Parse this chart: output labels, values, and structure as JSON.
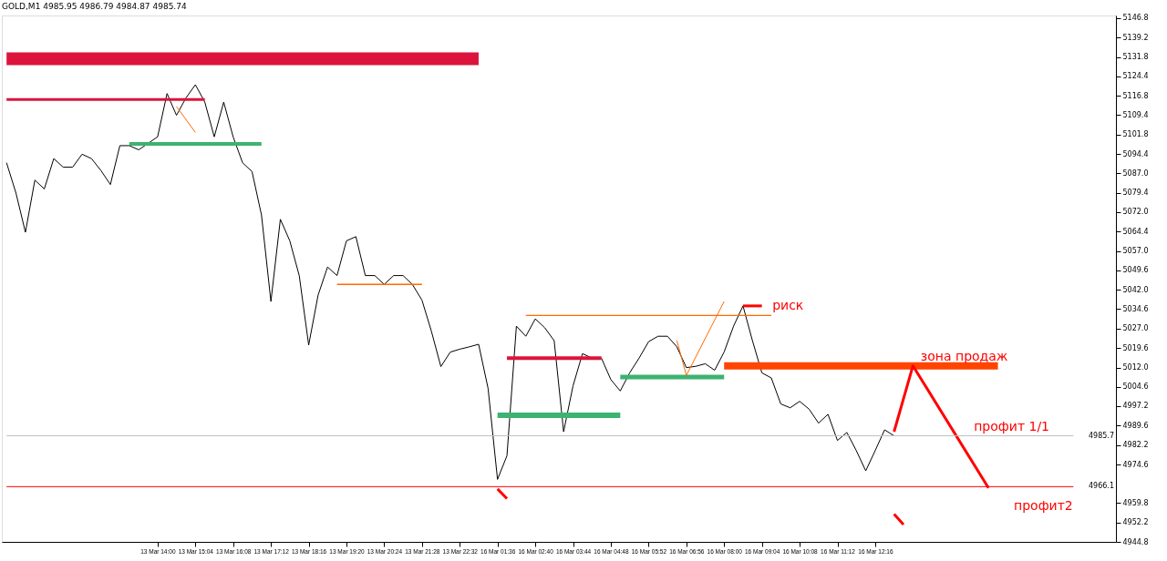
{
  "chart_data": {
    "type": "line",
    "title": "GOLD,M1  4985.95 4986.79 4984.87 4985.74",
    "categories": [
      null,
      null,
      null,
      null,
      null,
      null,
      null,
      null,
      null,
      null,
      null,
      null,
      null,
      null,
      null,
      null,
      "13 Mar 14:00",
      null,
      null,
      null,
      "13 Mar 15:04",
      null,
      null,
      null,
      "13 Mar 16:08",
      null,
      null,
      null,
      "13 Mar 17:12",
      null,
      null,
      null,
      "13 Mar 18:16",
      null,
      null,
      null,
      "13 Mar 19:20",
      null,
      null,
      null,
      "13 Mar 20:24",
      null,
      null,
      null,
      "13 Mar 21:28",
      null,
      null,
      null,
      "13 Mar 22:32",
      null,
      null,
      null,
      "16 Mar 01:36",
      null,
      null,
      null,
      "16 Mar 02:40",
      null,
      null,
      null,
      "16 Mar 03:44",
      null,
      null,
      null,
      "16 Mar 04:48",
      null,
      null,
      null,
      "16 Mar 05:52",
      null,
      null,
      null,
      "16 Mar 06:56",
      null,
      null,
      null,
      "16 Mar 08:00",
      null,
      null,
      null,
      "16 Mar 09:04",
      null,
      null,
      null,
      "16 Mar 10:08",
      null,
      null,
      null,
      "16 Mar 11:12",
      null,
      null,
      null,
      "16 Mar 12:16",
      null,
      null,
      null,
      null,
      null,
      null,
      null,
      null,
      null,
      null,
      null,
      null,
      null,
      null,
      null,
      null,
      null,
      null,
      null,
      null,
      null,
      null,
      null,
      null,
      null
    ],
    "ylim": [
      4944.8,
      5147.8
    ],
    "yticks": [
      {
        "value": 5146.8,
        "label": "5146.8"
      },
      {
        "value": 5139.2,
        "label": "5139.2"
      },
      {
        "value": 5131.8,
        "label": "5131.8"
      },
      {
        "value": 5124.4,
        "label": "5124.4"
      },
      {
        "value": 5116.8,
        "label": "5116.8"
      },
      {
        "value": 5109.4,
        "label": "5109.4"
      },
      {
        "value": 5101.8,
        "label": "5101.8"
      },
      {
        "value": 5094.4,
        "label": "5094.4"
      },
      {
        "value": 5087.0,
        "label": "5087.0"
      },
      {
        "value": 5079.4,
        "label": "5079.4"
      },
      {
        "value": 5072.0,
        "label": "5072.0"
      },
      {
        "value": 5064.4,
        "label": "5064.4"
      },
      {
        "value": 5057.0,
        "label": "5057.0"
      },
      {
        "value": 5049.6,
        "label": "5049.6"
      },
      {
        "value": 5042.0,
        "label": "5042.0"
      },
      {
        "value": 5034.6,
        "label": "5034.6"
      },
      {
        "value": 5027.0,
        "label": "5027.0"
      },
      {
        "value": 5019.6,
        "label": "5019.6"
      },
      {
        "value": 5012.0,
        "label": "5012.0"
      },
      {
        "value": 5004.6,
        "label": "5004.6"
      },
      {
        "value": 4997.2,
        "label": "4997.2"
      },
      {
        "value": 4989.6,
        "label": "4989.6"
      },
      {
        "value": 4982.2,
        "label": "4982.2"
      },
      {
        "value": 4974.6,
        "label": "4974.6"
      },
      {
        "value": 4959.8,
        "label": "4959.8"
      },
      {
        "value": 4952.2,
        "label": "4952.2"
      },
      {
        "value": 4944.8,
        "label": "4944.8"
      }
    ],
    "grid": false,
    "marker": "none",
    "series": [
      {
        "color": "#000000",
        "values": [
          5091.0,
          5079.3,
          5064.2,
          5084.3,
          5080.9,
          5092.6,
          5089.3,
          5089.3,
          5094.3,
          5092.6,
          5088.0,
          5082.6,
          5097.6,
          5097.6,
          5096.0,
          5098.5,
          5101.0,
          5117.7,
          5109.3,
          5116.0,
          5121.1,
          5114.4,
          5101.0,
          5114.4,
          5101.0,
          5091.0,
          5087.6,
          5070.9,
          5037.5,
          5069.2,
          5060.9,
          5047.5,
          5020.7,
          5040.0,
          5050.8,
          5047.5,
          5060.9,
          5062.5,
          5047.5,
          5047.5,
          5044.1,
          5047.5,
          5047.5,
          5044.0,
          5038.0,
          5026.0,
          5012.4,
          5018.0,
          5019.1,
          5020.0,
          5021.0,
          5004.0,
          4968.9,
          4978.0,
          5028.0,
          5024.1,
          5030.8,
          5027.4,
          5022.4,
          4987.3,
          5005.0,
          5017.4,
          5015.7,
          5015.7,
          5007.4,
          5003.0,
          5010.0,
          5015.7,
          5022.0,
          5024.1,
          5024.1,
          5020.0,
          5012.0,
          5012.5,
          5013.5,
          5011.0,
          5018.0,
          5028.0,
          5035.8,
          5022.4,
          5010.0,
          5008.0,
          4998.0,
          4996.5,
          4999.0,
          4996.0,
          4990.6,
          4994.0,
          4983.9,
          4987.0,
          4980.0,
          4972.2,
          4980.0,
          4988.0,
          4985.7,
          null,
          null,
          null,
          null,
          null,
          null,
          null,
          null,
          null,
          null,
          null,
          null,
          null,
          null,
          null,
          null,
          null,
          null,
          null,
          null,
          null,
          null,
          null
        ]
      },
      {
        "color": "#dc143c",
        "values": [
          5131.1,
          5131.1,
          5131.1,
          5131.1,
          5131.1,
          5131.1,
          5131.1,
          5131.1,
          5131.1,
          5131.1,
          5131.1,
          5131.1,
          5131.1,
          5131.1,
          5131.1,
          5131.1,
          5131.1,
          5131.1,
          5131.1,
          5131.1,
          5131.1,
          5131.1,
          5131.1,
          5131.1,
          5131.1,
          5131.1,
          5131.1,
          5131.1,
          5131.1,
          5131.1,
          5131.1,
          5131.1,
          5131.1,
          5131.1,
          5131.1,
          5131.1,
          5131.1,
          5131.1,
          5131.1,
          5131.1,
          5131.1,
          5131.1,
          5131.1,
          5131.1,
          5131.1,
          5131.1,
          5131.1,
          5131.1,
          5131.1,
          5131.1,
          5131.1,
          null,
          null,
          null,
          null,
          null,
          null,
          null,
          null,
          null,
          null,
          null,
          null,
          null,
          null,
          null,
          null,
          null,
          null,
          null,
          null,
          null,
          null,
          null,
          null,
          null,
          null,
          null,
          null,
          null,
          null,
          null,
          null,
          null,
          null,
          null,
          null,
          null,
          null,
          null,
          null,
          null,
          null,
          null,
          null,
          null,
          null,
          null,
          null,
          null,
          null,
          null,
          null,
          null,
          null,
          null,
          null,
          null,
          null,
          null,
          null,
          null,
          null,
          null,
          null,
          null,
          null,
          null
        ]
      },
      {
        "color": "#dc143c",
        "values": [
          5115.4,
          5115.4,
          5115.4,
          5115.4,
          5115.4,
          5115.4,
          5115.4,
          5115.4,
          5115.4,
          5115.4,
          5115.4,
          5115.4,
          5115.4,
          5115.4,
          5115.4,
          5115.4,
          5115.4,
          5115.4,
          5115.4,
          5115.4,
          5115.4,
          5115.4,
          null,
          null,
          null,
          null,
          null,
          null,
          null,
          null,
          null,
          null,
          null,
          null,
          null,
          null,
          null,
          null,
          null,
          null,
          null,
          null,
          null,
          null,
          null,
          null,
          null,
          null,
          null,
          null,
          null,
          null,
          null,
          null,
          null,
          null,
          null,
          null,
          null,
          null,
          null,
          null,
          null,
          null,
          null,
          null,
          null,
          null,
          null,
          null,
          null,
          null,
          null,
          null,
          null,
          null,
          null,
          null,
          null,
          null,
          null,
          null,
          null,
          null,
          null,
          null,
          null,
          null,
          null,
          null,
          null,
          null,
          null,
          null,
          null,
          null,
          null,
          null,
          null,
          null,
          null,
          null,
          null,
          null,
          null,
          null,
          null,
          null,
          null,
          null,
          null,
          null,
          null,
          null,
          null,
          null,
          null,
          null
        ]
      },
      {
        "color": "#3cb371",
        "values": [
          null,
          null,
          null,
          null,
          null,
          null,
          null,
          null,
          null,
          null,
          null,
          null,
          null,
          5098.3,
          5098.3,
          5098.3,
          5098.3,
          5098.3,
          5098.3,
          5098.3,
          5098.3,
          5098.3,
          5098.3,
          5098.3,
          5098.3,
          5098.3,
          5098.3,
          5098.3,
          null,
          null,
          null,
          null,
          null,
          null,
          null,
          null,
          null,
          null,
          null,
          null,
          null,
          null,
          null,
          null,
          null,
          null,
          null,
          null,
          null,
          null,
          null,
          null,
          null,
          null,
          null,
          null,
          null,
          null,
          null,
          null,
          null,
          null,
          null,
          null,
          null,
          null,
          null,
          null,
          null,
          null,
          null,
          null,
          null,
          null,
          null,
          null,
          null,
          null,
          null,
          null,
          null,
          null,
          null,
          null,
          null,
          null,
          null,
          null,
          null,
          null,
          null,
          null,
          null,
          null,
          null,
          null,
          null,
          null,
          null,
          null,
          null,
          null,
          null,
          null,
          null,
          null,
          null,
          null,
          null,
          null,
          null,
          null,
          null,
          null,
          null,
          null,
          null,
          null
        ]
      },
      {
        "color": "#ff6a00",
        "values": [
          null,
          null,
          null,
          null,
          null,
          null,
          null,
          null,
          null,
          null,
          null,
          null,
          null,
          null,
          null,
          null,
          null,
          null,
          null,
          null,
          null,
          null,
          null,
          null,
          null,
          null,
          null,
          null,
          null,
          null,
          null,
          null,
          null,
          null,
          null,
          5044.1,
          5044.1,
          5044.1,
          5044.1,
          5044.1,
          5044.1,
          5044.1,
          5044.1,
          5044.1,
          5044.1,
          null,
          null,
          null,
          null,
          null,
          null,
          null,
          null,
          null,
          null,
          null,
          null,
          null,
          null,
          null,
          null,
          null,
          null,
          null,
          null,
          null,
          null,
          null,
          null,
          null,
          null,
          null,
          null,
          null,
          null,
          null,
          null,
          null,
          null,
          null,
          null,
          null,
          null,
          null,
          null,
          null,
          null,
          null,
          null,
          null,
          null,
          null,
          null,
          null,
          null,
          null,
          null,
          null,
          null,
          null,
          null,
          null,
          null,
          null,
          null,
          null,
          null,
          null,
          null,
          null,
          null,
          null,
          null,
          null,
          null,
          null,
          null,
          null
        ]
      },
      {
        "color": "#ff6a00",
        "values": [
          null,
          null,
          null,
          null,
          null,
          null,
          null,
          null,
          null,
          null,
          null,
          null,
          null,
          null,
          null,
          null,
          null,
          null,
          null,
          null,
          null,
          null,
          null,
          null,
          null,
          null,
          null,
          null,
          null,
          null,
          null,
          null,
          null,
          null,
          null,
          null,
          null,
          null,
          null,
          null,
          null,
          null,
          null,
          null,
          null,
          null,
          null,
          null,
          null,
          null,
          null,
          null,
          null,
          null,
          null,
          5032.1,
          5032.1,
          5032.1,
          5032.1,
          5032.1,
          5032.1,
          5032.1,
          5032.1,
          5032.1,
          5032.1,
          5032.1,
          5032.1,
          5032.1,
          5032.1,
          5032.1,
          5032.1,
          5032.1,
          5032.1,
          5032.1,
          5032.1,
          5032.1,
          5032.1,
          5032.1,
          5032.1,
          5032.1,
          5032.1,
          5032.1,
          null,
          null,
          null,
          null,
          null,
          null,
          null,
          null,
          null,
          null,
          null,
          null,
          null,
          null,
          null,
          null,
          null,
          null,
          null,
          null,
          null,
          null,
          null,
          null,
          null,
          null,
          null,
          null,
          null,
          null,
          null,
          null,
          null,
          null,
          null,
          null
        ]
      },
      {
        "color": "#dc143c",
        "values": [
          null,
          null,
          null,
          null,
          null,
          null,
          null,
          null,
          null,
          null,
          null,
          null,
          null,
          null,
          null,
          null,
          null,
          null,
          null,
          null,
          null,
          null,
          null,
          null,
          null,
          null,
          null,
          null,
          null,
          null,
          null,
          null,
          null,
          null,
          null,
          null,
          null,
          null,
          null,
          null,
          null,
          null,
          null,
          null,
          null,
          null,
          null,
          null,
          null,
          null,
          null,
          null,
          null,
          5015.7,
          5015.7,
          5015.7,
          5015.7,
          5015.7,
          5015.7,
          5015.7,
          5015.7,
          5015.7,
          5015.7,
          5015.7,
          null,
          null,
          null,
          null,
          null,
          null,
          null,
          null,
          null,
          null,
          null,
          null,
          null,
          null,
          null,
          null,
          null,
          null,
          null,
          null,
          null,
          null,
          null,
          null,
          null,
          null,
          null,
          null,
          null,
          null,
          null,
          null,
          null,
          null,
          null,
          null,
          null,
          null,
          null,
          null,
          null,
          null,
          null,
          null,
          null,
          null,
          null,
          null,
          null,
          null,
          null,
          null,
          null,
          null
        ]
      },
      {
        "color": "#3cb371",
        "values": [
          null,
          null,
          null,
          null,
          null,
          null,
          null,
          null,
          null,
          null,
          null,
          null,
          null,
          null,
          null,
          null,
          null,
          null,
          null,
          null,
          null,
          null,
          null,
          null,
          null,
          null,
          null,
          null,
          null,
          null,
          null,
          null,
          null,
          null,
          null,
          null,
          null,
          null,
          null,
          null,
          null,
          null,
          null,
          null,
          null,
          null,
          null,
          null,
          null,
          null,
          null,
          null,
          null,
          null,
          null,
          null,
          null,
          null,
          null,
          null,
          null,
          null,
          null,
          null,
          null,
          5008.4,
          5008.4,
          5008.4,
          5008.4,
          5008.4,
          5008.4,
          5008.4,
          5008.4,
          5008.4,
          5008.4,
          5008.4,
          5008.4,
          null,
          null,
          null,
          null,
          null,
          null,
          null,
          null,
          null,
          null,
          null,
          null,
          null,
          null,
          null,
          null,
          null,
          null,
          null,
          null,
          null,
          null,
          null,
          null,
          null,
          null,
          null,
          null,
          null,
          null,
          null,
          null,
          null,
          null,
          null,
          null,
          null,
          null,
          null,
          null,
          null
        ]
      },
      {
        "color": "#3cb371",
        "values": [
          null,
          null,
          null,
          null,
          null,
          null,
          null,
          null,
          null,
          null,
          null,
          null,
          null,
          null,
          null,
          null,
          null,
          null,
          null,
          null,
          null,
          null,
          null,
          null,
          null,
          null,
          null,
          null,
          null,
          null,
          null,
          null,
          null,
          null,
          null,
          null,
          null,
          null,
          null,
          null,
          null,
          null,
          null,
          null,
          null,
          null,
          null,
          null,
          null,
          null,
          null,
          null,
          4993.6,
          4993.6,
          4993.6,
          4993.6,
          4993.6,
          4993.6,
          4993.6,
          4993.6,
          4993.6,
          4993.6,
          4993.6,
          4993.6,
          4993.6,
          4993.6,
          null,
          null,
          null,
          null,
          null,
          null,
          null,
          null,
          null,
          null,
          null,
          null,
          null,
          null,
          null,
          null,
          null,
          null,
          null,
          null,
          null,
          null,
          null,
          null,
          null,
          null,
          null,
          null,
          null,
          null,
          null,
          null,
          null,
          null,
          null,
          null,
          null,
          null,
          null,
          null,
          null,
          null,
          null,
          null,
          null,
          null,
          null,
          null,
          null,
          null,
          null,
          null
        ]
      },
      {
        "color": "#ff4500",
        "values": [
          null,
          null,
          null,
          null,
          null,
          null,
          null,
          null,
          null,
          null,
          null,
          null,
          null,
          null,
          null,
          null,
          null,
          null,
          null,
          null,
          null,
          null,
          null,
          null,
          null,
          null,
          null,
          null,
          null,
          null,
          null,
          null,
          null,
          null,
          null,
          null,
          null,
          null,
          null,
          null,
          null,
          null,
          null,
          null,
          null,
          null,
          null,
          null,
          null,
          null,
          null,
          null,
          null,
          null,
          null,
          null,
          null,
          null,
          null,
          null,
          null,
          null,
          null,
          null,
          null,
          null,
          null,
          null,
          null,
          null,
          null,
          null,
          null,
          null,
          null,
          null,
          5012.7,
          5012.7,
          5012.7,
          5012.7,
          5012.7,
          5012.7,
          5012.7,
          5012.7,
          5012.7,
          5012.7,
          5012.7,
          5012.7,
          5012.7,
          5012.7,
          5012.7,
          5012.7,
          5012.7,
          5012.7,
          5012.7,
          5012.7,
          5012.7,
          5012.7,
          5012.7,
          5012.7,
          5012.7,
          5012.7,
          5012.7,
          5012.7,
          5012.7,
          5012.7,
          null,
          null,
          null,
          null,
          null,
          null,
          null,
          null,
          null,
          null,
          null,
          null
        ]
      },
      {
        "color": "#ff6a00",
        "values": [
          null,
          null,
          null,
          null,
          null,
          null,
          null,
          null,
          null,
          null,
          null,
          null,
          null,
          null,
          null,
          null,
          null,
          null,
          5112.7,
          null,
          5102.7,
          null,
          null,
          null,
          null,
          null,
          null,
          null,
          null,
          null,
          null,
          null,
          null,
          null,
          null,
          null,
          null,
          null,
          null,
          null,
          null,
          null,
          null,
          null,
          null,
          null,
          null,
          null,
          null,
          null,
          null,
          null,
          null,
          null,
          null,
          null,
          null,
          null,
          null,
          null,
          null,
          null,
          null,
          null,
          null,
          null,
          null,
          null,
          null,
          null,
          null,
          null,
          null,
          null,
          null,
          null,
          null,
          null,
          null,
          null,
          null,
          null,
          null,
          null,
          null,
          null,
          null,
          null,
          null,
          null,
          null,
          null,
          null,
          null,
          null,
          null,
          null,
          null,
          null,
          null,
          null,
          null,
          null,
          null,
          null,
          null,
          null,
          null,
          null,
          null,
          null,
          null,
          null,
          null,
          null,
          null,
          null,
          null
        ]
      },
      {
        "color": "#ff6a00",
        "values": [
          null,
          null,
          null,
          null,
          null,
          null,
          null,
          null,
          null,
          null,
          null,
          null,
          null,
          null,
          null,
          null,
          null,
          null,
          null,
          null,
          null,
          null,
          null,
          null,
          null,
          null,
          null,
          null,
          null,
          null,
          null,
          null,
          null,
          null,
          null,
          null,
          null,
          null,
          null,
          null,
          null,
          null,
          null,
          null,
          null,
          null,
          null,
          null,
          null,
          null,
          null,
          null,
          null,
          null,
          null,
          null,
          null,
          null,
          null,
          null,
          null,
          null,
          null,
          null,
          null,
          null,
          null,
          null,
          null,
          null,
          null,
          5022.4,
          5009.0,
          null,
          null,
          null,
          5037.5,
          null,
          null,
          null,
          null,
          null,
          null,
          null,
          null,
          null,
          null,
          null,
          null,
          null,
          null,
          null,
          null,
          null,
          null,
          null,
          null,
          null,
          null,
          null,
          null,
          null,
          null,
          null,
          null,
          null,
          null,
          null,
          null,
          null,
          null,
          null,
          null,
          null,
          null,
          null,
          null,
          null
        ]
      },
      {
        "color": "#ff0000",
        "values": [
          null,
          null,
          null,
          null,
          null,
          null,
          null,
          null,
          null,
          null,
          null,
          null,
          null,
          null,
          null,
          null,
          null,
          null,
          null,
          null,
          null,
          null,
          null,
          null,
          null,
          null,
          null,
          null,
          null,
          null,
          null,
          null,
          null,
          null,
          null,
          null,
          null,
          null,
          null,
          null,
          null,
          null,
          null,
          null,
          null,
          null,
          null,
          null,
          null,
          null,
          null,
          null,
          null,
          null,
          null,
          null,
          null,
          null,
          null,
          null,
          null,
          null,
          null,
          null,
          null,
          null,
          null,
          null,
          null,
          null,
          null,
          null,
          null,
          null,
          null,
          null,
          null,
          null,
          null,
          null,
          null,
          null,
          null,
          null,
          null,
          null,
          null,
          null,
          null,
          null,
          null,
          null,
          null,
          null,
          4987.3,
          null,
          5012.7,
          null,
          null,
          null,
          null,
          null,
          null,
          null,
          4965.6,
          null,
          null,
          null,
          null,
          null,
          null,
          null,
          null,
          null,
          null,
          null,
          null,
          null
        ]
      },
      {
        "color": "#ff0000",
        "values": [
          null,
          null,
          null,
          null,
          null,
          null,
          null,
          null,
          null,
          null,
          null,
          null,
          null,
          null,
          null,
          null,
          null,
          null,
          null,
          null,
          null,
          null,
          null,
          null,
          null,
          null,
          null,
          null,
          null,
          null,
          null,
          null,
          null,
          null,
          null,
          null,
          null,
          null,
          null,
          null,
          null,
          null,
          null,
          null,
          null,
          null,
          null,
          null,
          null,
          null,
          null,
          null,
          null,
          null,
          null,
          null,
          null,
          null,
          null,
          null,
          null,
          null,
          null,
          null,
          null,
          null,
          null,
          null,
          null,
          null,
          null,
          null,
          null,
          null,
          null,
          null,
          null,
          null,
          5035.8,
          5035.8,
          5035.8,
          null,
          null,
          null,
          null,
          null,
          null,
          null,
          null,
          null,
          null,
          null,
          null,
          null,
          null,
          null,
          null,
          null,
          null,
          null,
          null,
          null,
          null,
          null,
          null,
          null,
          null,
          null,
          null,
          null,
          null,
          null,
          null,
          null,
          null,
          null,
          null,
          null
        ]
      },
      {
        "color": "#ff0000",
        "values": [
          null,
          null,
          null,
          null,
          null,
          null,
          null,
          null,
          null,
          null,
          null,
          null,
          null,
          null,
          null,
          null,
          null,
          null,
          null,
          null,
          null,
          null,
          null,
          null,
          null,
          null,
          null,
          null,
          null,
          null,
          null,
          null,
          null,
          null,
          null,
          null,
          null,
          null,
          null,
          null,
          null,
          null,
          null,
          null,
          null,
          null,
          null,
          null,
          null,
          null,
          null,
          null,
          4965.2,
          4961.5,
          null,
          null,
          null,
          null,
          null,
          null,
          null,
          null,
          null,
          null,
          null,
          null,
          null,
          null,
          null,
          null,
          null,
          null,
          null,
          null,
          null,
          null,
          null,
          null,
          null,
          null,
          null,
          null,
          null,
          null,
          null,
          null,
          null,
          null,
          null,
          null,
          null,
          null,
          null,
          null,
          null,
          null,
          null,
          null,
          null,
          null,
          null,
          null,
          null,
          null,
          null,
          null,
          null,
          null,
          null,
          null,
          null,
          null,
          null,
          null,
          null,
          null,
          null,
          null
        ]
      },
      {
        "color": "#ff0000",
        "values": [
          null,
          null,
          null,
          null,
          null,
          null,
          null,
          null,
          null,
          null,
          null,
          null,
          null,
          null,
          null,
          null,
          null,
          null,
          null,
          null,
          null,
          null,
          null,
          null,
          null,
          null,
          null,
          null,
          null,
          null,
          null,
          null,
          null,
          null,
          null,
          null,
          null,
          null,
          null,
          null,
          null,
          null,
          null,
          null,
          null,
          null,
          null,
          null,
          null,
          null,
          null,
          null,
          null,
          null,
          null,
          null,
          null,
          null,
          null,
          null,
          null,
          null,
          null,
          null,
          null,
          null,
          null,
          null,
          null,
          null,
          null,
          null,
          null,
          null,
          null,
          null,
          null,
          null,
          null,
          null,
          null,
          null,
          null,
          null,
          null,
          null,
          null,
          null,
          null,
          null,
          null,
          null,
          null,
          null,
          4955.5,
          4951.5,
          null,
          null,
          null,
          null,
          null,
          null,
          null,
          null,
          null,
          null,
          null,
          null,
          null,
          null,
          null,
          null,
          null,
          null,
          null,
          null,
          null,
          null
        ]
      }
    ],
    "ref_lines": [
      {
        "axis": "y",
        "value": 4966.1,
        "label": "4966.1",
        "color": "#ff0000",
        "line_style": "solid"
      },
      {
        "axis": "y",
        "value": 4985.7,
        "label": "4985.7",
        "color": "#c0c0c0",
        "line_style": "solid"
      }
    ],
    "annotations": [
      "риск",
      "зона продаж",
      "профит 1/1",
      "профит2"
    ]
  }
}
